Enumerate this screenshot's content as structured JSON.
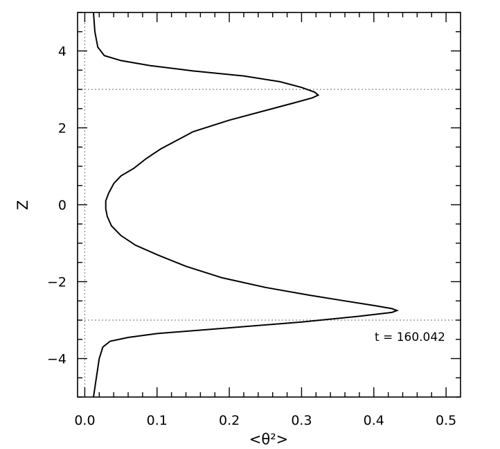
{
  "chart_data": {
    "type": "line",
    "title": "",
    "xlabel": "<θ²>",
    "ylabel": "Z",
    "xlim": [
      -0.01,
      0.52
    ],
    "ylim": [
      -5,
      5
    ],
    "grid": false,
    "x_ticks": [
      0.0,
      0.1,
      0.2,
      0.3,
      0.4,
      0.5
    ],
    "x_tick_labels": [
      "0.0",
      "0.1",
      "0.2",
      "0.3",
      "0.4",
      "0.5"
    ],
    "y_ticks": [
      -4,
      -2,
      0,
      2,
      4
    ],
    "y_tick_labels": [
      "−4",
      "−2",
      "0",
      "2",
      "4"
    ],
    "reference_lines": {
      "z": [
        3,
        -3
      ],
      "x": [
        0.0
      ]
    },
    "annotation": "t = 160.042",
    "series": [
      {
        "x": [
          0.012,
          0.014,
          0.018,
          0.027,
          0.05,
          0.09,
          0.15,
          0.22,
          0.27,
          0.3,
          0.318,
          0.323,
          0.315,
          0.29,
          0.25,
          0.2,
          0.15,
          0.13,
          0.105,
          0.085,
          0.068,
          0.05,
          0.04,
          0.033,
          0.029,
          0.029,
          0.031,
          0.037,
          0.05,
          0.07,
          0.1,
          0.14,
          0.19,
          0.25,
          0.31,
          0.36,
          0.4,
          0.425,
          0.432,
          0.425,
          0.38,
          0.3,
          0.2,
          0.1,
          0.06,
          0.035,
          0.025,
          0.02,
          0.016,
          0.012
        ],
        "y": [
          5.0,
          4.5,
          4.1,
          3.88,
          3.75,
          3.62,
          3.48,
          3.35,
          3.2,
          3.05,
          2.93,
          2.85,
          2.78,
          2.65,
          2.45,
          2.2,
          1.9,
          1.7,
          1.45,
          1.2,
          0.95,
          0.75,
          0.55,
          0.3,
          0.1,
          -0.1,
          -0.3,
          -0.55,
          -0.8,
          -1.05,
          -1.3,
          -1.6,
          -1.9,
          -2.15,
          -2.35,
          -2.5,
          -2.62,
          -2.7,
          -2.75,
          -2.8,
          -2.9,
          -3.05,
          -3.2,
          -3.35,
          -3.45,
          -3.55,
          -3.7,
          -4.0,
          -4.5,
          -5.0
        ]
      }
    ]
  }
}
